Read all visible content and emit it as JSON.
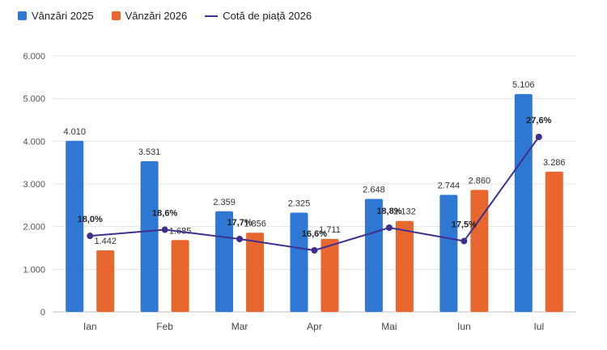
{
  "chart_data": {
    "type": "bar",
    "categories": [
      "Ian",
      "Feb",
      "Mar",
      "Apr",
      "Mai",
      "Iun",
      "Iul"
    ],
    "series": [
      {
        "name": "Vânzări 2025",
        "type": "bar",
        "color": "#2e78d3",
        "values": [
          4010,
          3531,
          2359,
          2325,
          2648,
          2744,
          5106
        ],
        "labels": [
          "4.010",
          "3.531",
          "2.359",
          "2.325",
          "2.648",
          "2.744",
          "5.106"
        ]
      },
      {
        "name": "Vânzări 2026",
        "type": "bar",
        "color": "#e8672f",
        "values": [
          1442,
          1685,
          1856,
          1711,
          2132,
          2860,
          3286
        ],
        "labels": [
          "1.442",
          "1.685",
          "1.856",
          "1.711",
          "2.132",
          "2.860",
          "3.286"
        ]
      },
      {
        "name": "Cotă de piață 2026",
        "type": "line",
        "color": "#3f2f8f",
        "values": [
          18.0,
          18.6,
          17.7,
          16.6,
          18.8,
          17.5,
          27.6
        ],
        "labels": [
          "18,0%",
          "18,6%",
          "17,7%",
          "16,6%",
          "18,8%",
          "17,5%",
          "27,6%"
        ]
      }
    ],
    "ylim": [
      0,
      6000
    ],
    "yticks": [
      "0",
      "1.000",
      "2.000",
      "3.000",
      "4.000",
      "5.000",
      "6.000"
    ],
    "grid": true,
    "legend_position": "top-left"
  }
}
